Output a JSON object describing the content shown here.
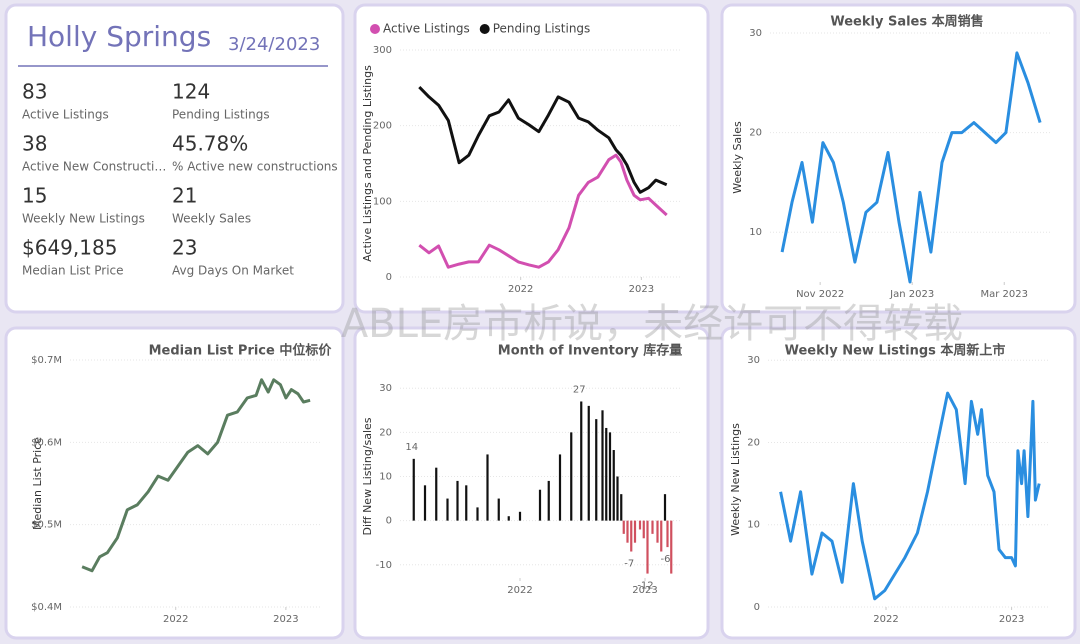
{
  "kpi": {
    "title": "Holly Springs",
    "date": "3/24/2023",
    "items": [
      {
        "value": "83",
        "label": "Active Listings"
      },
      {
        "value": "124",
        "label": "Pending Listings"
      },
      {
        "value": "38",
        "label": "Active New Constructi…"
      },
      {
        "value": "45.78%",
        "label": "% Active new constructions"
      },
      {
        "value": "15",
        "label": "Weekly New Listings"
      },
      {
        "value": "21",
        "label": "Weekly Sales"
      },
      {
        "value": "$649,185",
        "label": "Median List Price"
      },
      {
        "value": "23",
        "label": "Avg Days On Market"
      }
    ]
  },
  "watermark": "ABLE房市析说，未经许可不得转载",
  "chart_data": [
    {
      "type": "line",
      "y_label": "Active Listings and Pending Listings",
      "legend": "top",
      "grid": true,
      "x": [
        2021.16,
        2021.24,
        2021.32,
        2021.4,
        2021.49,
        2021.57,
        2021.65,
        2021.74,
        2021.82,
        2021.9,
        2021.98,
        2022.07,
        2022.15,
        2022.23,
        2022.31,
        2022.4,
        2022.48,
        2022.56,
        2022.64,
        2022.73,
        2022.79,
        2022.83,
        2022.88,
        2022.94,
        2022.99,
        2023.06,
        2023.12,
        2023.21
      ],
      "series": [
        {
          "name": "Active Listings",
          "color": "#d24fb0",
          "values": [
            42,
            32,
            41,
            13,
            17,
            20,
            20,
            42,
            36,
            28,
            20,
            16,
            13,
            20,
            36,
            65,
            108,
            125,
            132,
            155,
            161,
            152,
            128,
            108,
            102,
            104,
            95,
            82
          ]
        },
        {
          "name": "Pending Listings",
          "color": "#111111",
          "values": [
            251,
            238,
            227,
            207,
            151,
            161,
            187,
            213,
            218,
            234,
            210,
            201,
            192,
            214,
            238,
            231,
            210,
            205,
            194,
            184,
            168,
            161,
            148,
            125,
            112,
            118,
            128,
            122
          ]
        }
      ],
      "xlim": [
        2021.0,
        2023.32
      ],
      "xticks": [
        {
          "value": 2022,
          "label": "2022"
        },
        {
          "value": 2023,
          "label": "2023"
        }
      ],
      "ylim": [
        0,
        300
      ],
      "yticks": [
        0,
        100,
        200,
        300
      ]
    },
    {
      "type": "line",
      "title": "Weekly Sales 本周销售",
      "y_label": "Weekly Sales",
      "color": "#2a8ee0",
      "grid": true,
      "x": [
        2022.764,
        2022.782,
        2022.8,
        2022.819,
        2022.838,
        2022.857,
        2022.875,
        2022.896,
        2022.916,
        2022.936,
        2022.956,
        2022.976,
        2022.996,
        2023.014,
        2023.034,
        2023.054,
        2023.072,
        2023.09,
        2023.112,
        2023.132,
        2023.152,
        2023.17,
        2023.19,
        2023.21,
        2023.232
      ],
      "values": [
        8,
        13,
        17,
        11,
        19,
        17,
        13,
        7,
        12,
        13,
        18,
        11,
        5,
        14,
        8,
        17,
        20,
        20,
        21,
        20,
        19,
        20,
        28,
        25,
        21
      ],
      "xlim": [
        2022.742,
        2023.25
      ],
      "xticks": [
        {
          "value": 2022.833,
          "label": "Nov 2022"
        },
        {
          "value": 2023.0,
          "label": "Jan 2023"
        },
        {
          "value": 2023.167,
          "label": "Mar 2023"
        }
      ],
      "ylim": [
        5,
        30
      ],
      "yticks": [
        10,
        20,
        30
      ]
    },
    {
      "type": "line",
      "title": "Median List Price  中位标价",
      "y_label": "Median List Price",
      "color": "#5a7d5f",
      "grid": true,
      "x": [
        2021.15,
        2021.24,
        2021.31,
        2021.38,
        2021.47,
        2021.56,
        2021.65,
        2021.75,
        2021.84,
        2021.93,
        2022.02,
        2022.11,
        2022.2,
        2022.29,
        2022.38,
        2022.47,
        2022.56,
        2022.65,
        2022.73,
        2022.78,
        2022.84,
        2022.89,
        2022.95,
        2023.0,
        2023.05,
        2023.11,
        2023.16,
        2023.22
      ],
      "values": [
        449000,
        444000,
        461000,
        466000,
        484000,
        518000,
        524000,
        540000,
        559000,
        554000,
        571000,
        588000,
        596000,
        586000,
        600000,
        633000,
        637000,
        654000,
        657000,
        676000,
        661000,
        676000,
        670000,
        654000,
        664000,
        659000,
        649000,
        651000
      ],
      "xlim": [
        2021.04,
        2023.31
      ],
      "xticks": [
        {
          "value": 2022,
          "label": "2022"
        },
        {
          "value": 2023,
          "label": "2023"
        }
      ],
      "ylim": [
        400000,
        700000
      ],
      "yticks": [
        {
          "value": 400000,
          "label": "$0.4M"
        },
        {
          "value": 500000,
          "label": "$0.5M"
        },
        {
          "value": 600000,
          "label": "$0.6M"
        },
        {
          "value": 700000,
          "label": "$0.7M"
        }
      ]
    },
    {
      "type": "bar",
      "title": "Month of Inventory 库存量",
      "y_label": "Diff New Listing/sales",
      "color": "#111111",
      "negative_color": "#d0505f",
      "grid": true,
      "x": [
        2021.15,
        2021.24,
        2021.33,
        2021.42,
        2021.5,
        2021.57,
        2021.66,
        2021.74,
        2021.83,
        2021.91,
        2022.0,
        2022.16,
        2022.23,
        2022.32,
        2022.41,
        2022.49,
        2022.55,
        2022.61,
        2022.66,
        2022.69,
        2022.72,
        2022.75,
        2022.78,
        2022.81,
        2022.83,
        2022.86,
        2022.89,
        2022.92,
        2022.96,
        2022.99,
        2023.02,
        2023.06,
        2023.1,
        2023.13,
        2023.16,
        2023.18,
        2023.21
      ],
      "values": [
        14,
        8,
        12,
        5,
        9,
        8,
        3,
        15,
        5,
        1,
        2,
        7,
        9,
        15,
        20,
        27,
        26,
        23,
        25,
        21,
        20,
        16,
        10,
        6,
        -3,
        -5,
        -7,
        -5,
        -2,
        -4,
        -12,
        -3,
        -5,
        -7,
        6,
        -6,
        -12
      ],
      "value_labels": [
        14,
        null,
        null,
        null,
        null,
        null,
        null,
        null,
        null,
        null,
        null,
        null,
        null,
        null,
        null,
        27,
        null,
        null,
        null,
        null,
        null,
        null,
        null,
        null,
        null,
        null,
        -7,
        null,
        null,
        null,
        -12,
        null,
        null,
        null,
        null,
        -6,
        null
      ],
      "xlim": [
        2021.04,
        2023.28
      ],
      "xticks": [
        {
          "value": 2022,
          "label": "2022"
        },
        {
          "value": 2023,
          "label": "2023"
        }
      ],
      "ylim": [
        -13,
        33
      ],
      "yticks": [
        -10,
        0,
        10,
        20,
        30
      ]
    },
    {
      "type": "line",
      "title": "Weekly New Listings  本周新上市",
      "y_label": "Weekly New Listings",
      "color": "#2a8ee0",
      "grid": true,
      "x": [
        2021.16,
        2021.24,
        2021.32,
        2021.41,
        2021.49,
        2021.57,
        2021.65,
        2021.74,
        2021.81,
        2021.91,
        2021.99,
        2022.07,
        2022.15,
        2022.25,
        2022.33,
        2022.41,
        2022.49,
        2022.56,
        2022.63,
        2022.68,
        2022.73,
        2022.76,
        2022.81,
        2022.86,
        2022.9,
        2022.95,
        2023.0,
        2023.03,
        2023.05,
        2023.08,
        2023.1,
        2023.13,
        2023.17,
        2023.19,
        2023.22
      ],
      "values": [
        14,
        8,
        14,
        4,
        9,
        8,
        3,
        15,
        8,
        1,
        2,
        4,
        6,
        9,
        14,
        20,
        26,
        24,
        15,
        25,
        21,
        24,
        16,
        14,
        7,
        6,
        6,
        5,
        19,
        15,
        19,
        11,
        25,
        13,
        15
      ],
      "xlim": [
        2021.06,
        2023.29
      ],
      "xticks": [
        {
          "value": 2022,
          "label": "2022"
        },
        {
          "value": 2023,
          "label": "2023"
        }
      ],
      "ylim": [
        0,
        31
      ],
      "yticks": [
        0,
        10,
        20,
        30
      ]
    }
  ]
}
